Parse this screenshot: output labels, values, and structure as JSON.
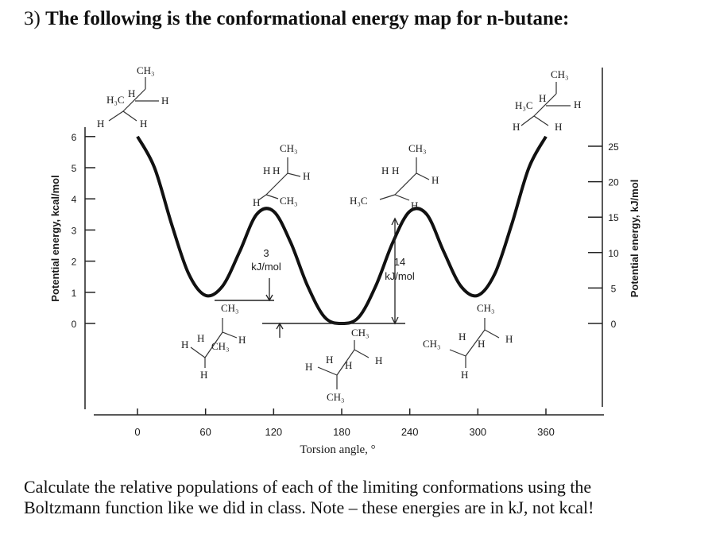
{
  "question": {
    "number": "3)",
    "stem": "The following is the conformational energy map for n-butane:"
  },
  "footer": {
    "line1": "Calculate the relative populations of each of the limiting conformations using the",
    "line2": "Boltzmann function like we did in class.  Note – these energies are in kJ, not kcal!"
  },
  "chart_data": {
    "type": "line",
    "xlabel": "Torsion angle, °",
    "ylabel_left": "Potential energy, kcal/mol",
    "ylabel_right": "Potential energy, kJ/mol",
    "x_ticks": [
      0,
      60,
      120,
      180,
      240,
      300,
      360
    ],
    "y_ticks_left": [
      0,
      1,
      2,
      3,
      4,
      5,
      6
    ],
    "y_ticks_right": [
      0,
      5,
      10,
      15,
      20,
      25
    ],
    "xlim": [
      0,
      360
    ],
    "ylim_kcal": [
      0,
      6
    ],
    "series": [
      {
        "x": [
          0,
          15,
          30,
          45,
          60,
          75,
          90,
          105,
          120,
          135,
          150,
          165,
          180,
          195,
          210,
          225,
          240,
          255,
          270,
          285,
          300,
          315,
          330,
          345,
          360
        ],
        "y": [
          6.0,
          5.0,
          3.2,
          1.6,
          0.9,
          1.2,
          2.3,
          3.5,
          3.6,
          2.6,
          1.2,
          0.2,
          0.0,
          0.2,
          1.2,
          2.6,
          3.6,
          3.5,
          2.3,
          1.2,
          0.9,
          1.6,
          3.2,
          5.0,
          6.0
        ]
      }
    ],
    "annotations": [
      {
        "text_value": "3",
        "text_unit": "kJ/mol"
      },
      {
        "text_value": "14",
        "text_unit": "kJ/mol"
      }
    ],
    "newman_labels": {
      "eclipsed_0": {
        "top": "CH₃",
        "left_up": "H₃C",
        "mid": "H",
        "right": "H",
        "bl": "H",
        "br": "H"
      },
      "gauche_60": {
        "top": "CH₃",
        "l": "H",
        "m": "H",
        "r": "H",
        "rear": "CH₃",
        "bottom": "H"
      },
      "eclipsed_120": {
        "top": "CH₃",
        "l": "H",
        "m": "H",
        "r": "H",
        "bl": "H",
        "br": "CH₃"
      },
      "anti_180": {
        "top": "CH₃",
        "l": "H",
        "m": "H",
        "rh": "H",
        "r": "H",
        "bottom": "CH₃"
      },
      "eclipsed_240": {
        "top": "CH₃",
        "l": "H",
        "m": "H",
        "r": "H",
        "bl": "H₃C",
        "br": "H"
      },
      "gauche_300": {
        "top": "CH₃",
        "l": "CH₃",
        "m": "H",
        "rh": "H",
        "r": "H",
        "bottom": "H"
      },
      "eclipsed_360": {
        "top": "CH₃",
        "left_up": "H₃C",
        "mid": "H",
        "right": "H",
        "bl": "H",
        "br": "H"
      }
    }
  }
}
